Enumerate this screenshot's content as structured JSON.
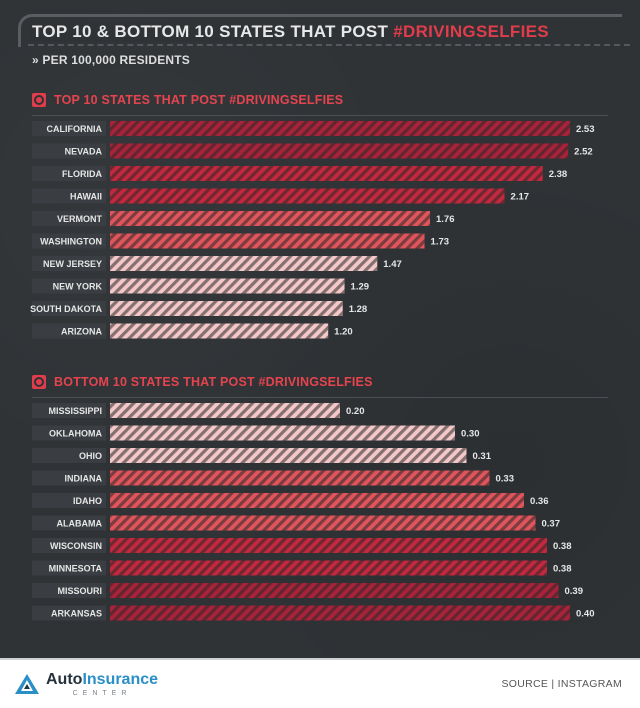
{
  "header": {
    "title_prefix": "TOP 10 & BOTTOM 10 STATES THAT POST ",
    "title_highlight": "#DRIVINGSELFIES",
    "subtitle": "» PER 100,000 RESIDENTS"
  },
  "colors": {
    "background": "#2f3336",
    "accent": "#e03c4b",
    "bar_darkest": "#a8233a",
    "bar_dark": "#c2283e",
    "bar_mid": "#e0555c",
    "bar_light": "#f4c8c8"
  },
  "chart_data": [
    {
      "type": "bar",
      "orientation": "horizontal",
      "title": "TOP 10 STATES THAT POST #DRIVINGSELFIES",
      "categories": [
        "CALIFORNIA",
        "NEVADA",
        "FLORIDA",
        "HAWAII",
        "VERMONT",
        "WASHINGTON",
        "NEW JERSEY",
        "NEW YORK",
        "SOUTH DAKOTA",
        "ARIZONA"
      ],
      "values": [
        2.53,
        2.52,
        2.38,
        2.17,
        1.76,
        1.73,
        1.47,
        1.29,
        1.28,
        1.2
      ],
      "labels": [
        "2.53",
        "2.52",
        "2.38",
        "2.17",
        "1.76",
        "1.73",
        "1.47",
        "1.29",
        "1.28",
        "1.20"
      ],
      "xlim": [
        0,
        2.53
      ]
    },
    {
      "type": "bar",
      "orientation": "horizontal",
      "title": "BOTTOM 10 STATES THAT POST #DRIVINGSELFIES",
      "categories": [
        "MISSISSIPPI",
        "OKLAHOMA",
        "OHIO",
        "INDIANA",
        "IDAHO",
        "ALABAMA",
        "WISCONSIN",
        "MINNESOTA",
        "MISSOURI",
        "ARKANSAS"
      ],
      "values": [
        0.2,
        0.3,
        0.31,
        0.33,
        0.36,
        0.37,
        0.38,
        0.38,
        0.39,
        0.4
      ],
      "labels": [
        "0.20",
        "0.30",
        "0.31",
        "0.33",
        "0.36",
        "0.37",
        "0.38",
        "0.38",
        "0.39",
        "0.40"
      ],
      "xlim": [
        0,
        0.4
      ]
    }
  ],
  "footer": {
    "logo_main_a": "Auto",
    "logo_main_b": "Insurance",
    "logo_sub": "CENTER",
    "source": "SOURCE | INSTAGRAM"
  }
}
